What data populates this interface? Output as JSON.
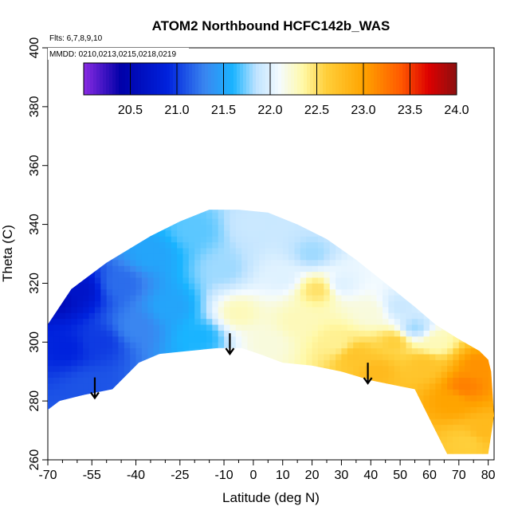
{
  "chart_data": {
    "type": "heatmap",
    "title": "ATOM2 Northbound HCFC142b_WAS",
    "flights_label": "Flts: 6,7,8,9,10",
    "dates_label": "MMDD: 0210,0213,0215,0218,0219",
    "xlabel": "Latitude (deg N)",
    "ylabel": "Theta (C)",
    "xlim": [
      -70,
      82
    ],
    "ylim": [
      260,
      400
    ],
    "x_ticks": [
      -70,
      -55,
      -40,
      -25,
      -10,
      0,
      10,
      20,
      30,
      40,
      50,
      60,
      70,
      80
    ],
    "x_tick_labels": [
      "-70",
      "-55",
      "-40",
      "-25",
      "-10",
      "0",
      "10",
      "20",
      "30",
      "40",
      "50",
      "60",
      "70",
      "80"
    ],
    "x_minor_ticks": [
      -65,
      -60,
      -50,
      -45,
      -35,
      -30,
      -20,
      -15,
      -5,
      5,
      15,
      25,
      35,
      45,
      55,
      65,
      75,
      85
    ],
    "y_ticks": [
      260,
      280,
      300,
      320,
      340,
      360,
      380,
      400
    ],
    "y_tick_labels": [
      "260",
      "280",
      "300",
      "320",
      "340",
      "360",
      "380",
      "400"
    ],
    "colorbar": {
      "range": [
        20.0,
        24.0
      ],
      "ticks": [
        20.5,
        21.0,
        21.5,
        22.0,
        22.5,
        23.0,
        23.5,
        24.0
      ],
      "tick_labels": [
        "20.5",
        "21.0",
        "21.5",
        "22.0",
        "22.5",
        "23.0",
        "23.5",
        "24.0"
      ],
      "stops": [
        {
          "v": 20.0,
          "color": "#8a2be2"
        },
        {
          "v": 20.4,
          "color": "#0000a8"
        },
        {
          "v": 20.9,
          "color": "#0022dd"
        },
        {
          "v": 21.3,
          "color": "#3a86f0"
        },
        {
          "v": 21.6,
          "color": "#19b4ff"
        },
        {
          "v": 21.85,
          "color": "#bfe3ff"
        },
        {
          "v": 22.1,
          "color": "#f4fbff"
        },
        {
          "v": 22.35,
          "color": "#fff9a8"
        },
        {
          "v": 22.6,
          "color": "#ffcf3a"
        },
        {
          "v": 23.0,
          "color": "#ffa400"
        },
        {
          "v": 23.4,
          "color": "#ff5a00"
        },
        {
          "v": 23.7,
          "color": "#dd0000"
        },
        {
          "v": 24.0,
          "color": "#8b1010"
        }
      ]
    },
    "boundary_top": [
      [
        -70,
        306
      ],
      [
        -62,
        318
      ],
      [
        -50,
        327
      ],
      [
        -35,
        336
      ],
      [
        -25,
        341
      ],
      [
        -15,
        345
      ],
      [
        -5,
        345
      ],
      [
        5,
        344
      ],
      [
        15,
        340
      ],
      [
        25,
        335
      ],
      [
        35,
        328
      ],
      [
        45,
        320
      ],
      [
        55,
        312
      ],
      [
        62,
        306
      ],
      [
        70,
        301
      ],
      [
        77,
        297
      ],
      [
        80,
        294
      ]
    ],
    "boundary_bottom": [
      [
        -70,
        277
      ],
      [
        -66,
        280
      ],
      [
        -58,
        282
      ],
      [
        -48,
        284
      ],
      [
        -39,
        293
      ],
      [
        -32,
        296
      ],
      [
        -22,
        297
      ],
      [
        -12,
        298
      ],
      [
        -4,
        298
      ],
      [
        2,
        296
      ],
      [
        10,
        293
      ],
      [
        20,
        292
      ],
      [
        30,
        290
      ],
      [
        40,
        287
      ],
      [
        50,
        285
      ],
      [
        55,
        284
      ],
      [
        62,
        270
      ],
      [
        66,
        262
      ],
      [
        75,
        262
      ],
      [
        80,
        262
      ],
      [
        82,
        275
      ],
      [
        81,
        290
      ],
      [
        80,
        294
      ]
    ],
    "field_anchors": [
      {
        "lat": -68,
        "theta": 316,
        "value": 20.5
      },
      {
        "lat": -60,
        "theta": 318,
        "value": 20.7
      },
      {
        "lat": -64,
        "theta": 298,
        "value": 20.9
      },
      {
        "lat": -52,
        "theta": 300,
        "value": 21.0
      },
      {
        "lat": -55,
        "theta": 285,
        "value": 21.1
      },
      {
        "lat": -45,
        "theta": 320,
        "value": 21.2
      },
      {
        "lat": -40,
        "theta": 305,
        "value": 21.3
      },
      {
        "lat": -35,
        "theta": 330,
        "value": 21.5
      },
      {
        "lat": -28,
        "theta": 312,
        "value": 21.5
      },
      {
        "lat": -20,
        "theta": 338,
        "value": 21.7
      },
      {
        "lat": -18,
        "theta": 302,
        "value": 21.6
      },
      {
        "lat": -10,
        "theta": 325,
        "value": 21.8
      },
      {
        "lat": -5,
        "theta": 310,
        "value": 22.3
      },
      {
        "lat": 0,
        "theta": 340,
        "value": 21.9
      },
      {
        "lat": 5,
        "theta": 300,
        "value": 22.2
      },
      {
        "lat": 10,
        "theta": 322,
        "value": 22.0
      },
      {
        "lat": 15,
        "theta": 307,
        "value": 22.3
      },
      {
        "lat": 20,
        "theta": 330,
        "value": 21.8
      },
      {
        "lat": 22,
        "theta": 318,
        "value": 22.5
      },
      {
        "lat": 28,
        "theta": 300,
        "value": 22.4
      },
      {
        "lat": 30,
        "theta": 320,
        "value": 22.0
      },
      {
        "lat": 35,
        "theta": 295,
        "value": 22.7
      },
      {
        "lat": 40,
        "theta": 310,
        "value": 22.2
      },
      {
        "lat": 42,
        "theta": 290,
        "value": 22.8
      },
      {
        "lat": 48,
        "theta": 300,
        "value": 22.6
      },
      {
        "lat": 50,
        "theta": 312,
        "value": 21.9
      },
      {
        "lat": 55,
        "theta": 305,
        "value": 21.8
      },
      {
        "lat": 58,
        "theta": 292,
        "value": 22.7
      },
      {
        "lat": 62,
        "theta": 300,
        "value": 22.3
      },
      {
        "lat": 68,
        "theta": 280,
        "value": 23.0
      },
      {
        "lat": 72,
        "theta": 285,
        "value": 23.2
      },
      {
        "lat": 76,
        "theta": 292,
        "value": 23.1
      },
      {
        "lat": 78,
        "theta": 270,
        "value": 22.8
      },
      {
        "lat": 73,
        "theta": 266,
        "value": 22.6
      }
    ],
    "arrows": [
      {
        "lat": -54,
        "theta_top": 288,
        "theta_bottom": 281
      },
      {
        "lat": -8,
        "theta_top": 303,
        "theta_bottom": 296
      },
      {
        "lat": 39,
        "theta_top": 293,
        "theta_bottom": 286
      }
    ]
  }
}
